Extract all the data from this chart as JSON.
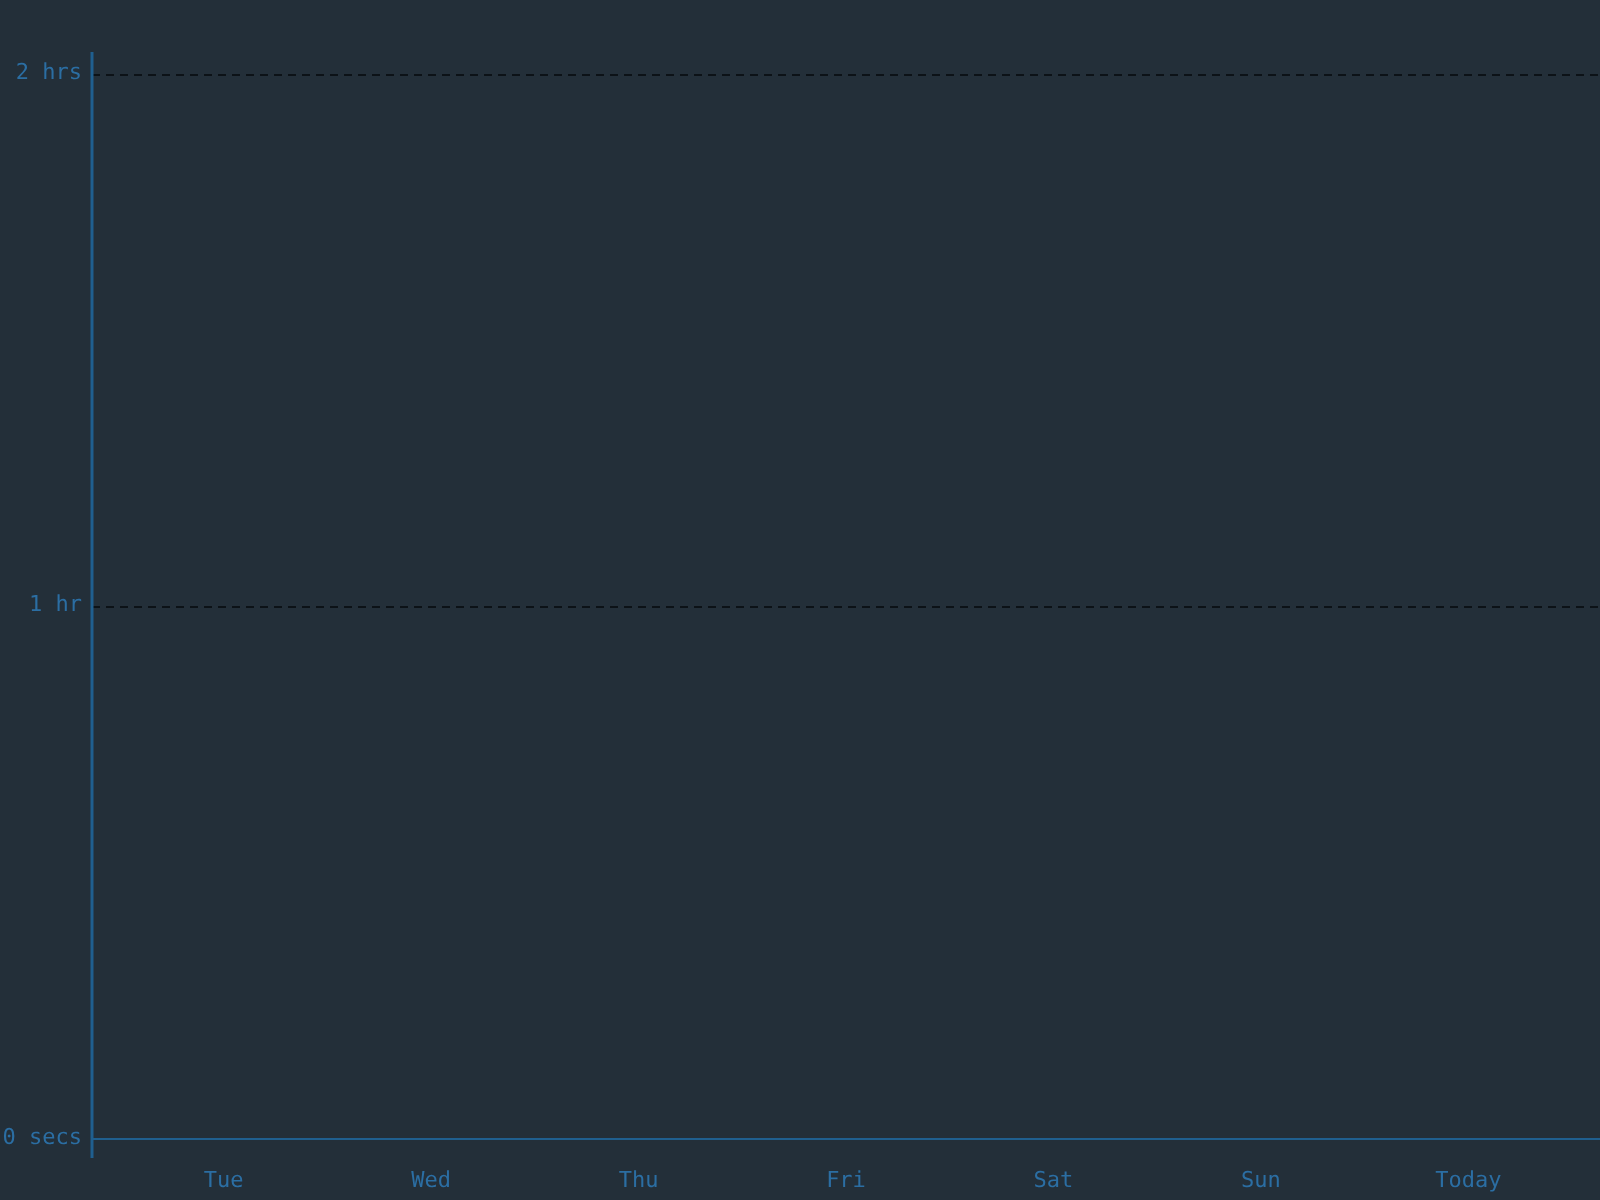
{
  "chart_data": {
    "type": "bar",
    "categories": [
      "Tue",
      "Wed",
      "Thu",
      "Fri",
      "Sat",
      "Sun",
      "Today"
    ],
    "values": [
      0,
      0,
      0,
      0,
      0,
      0,
      0
    ],
    "ylim": [
      0,
      2.04
    ],
    "yticks": [
      {
        "value": 0,
        "label": "0 secs"
      },
      {
        "value": 1,
        "label": "1 hr"
      },
      {
        "value": 2,
        "label": "2 hrs"
      }
    ],
    "grid": "y"
  }
}
